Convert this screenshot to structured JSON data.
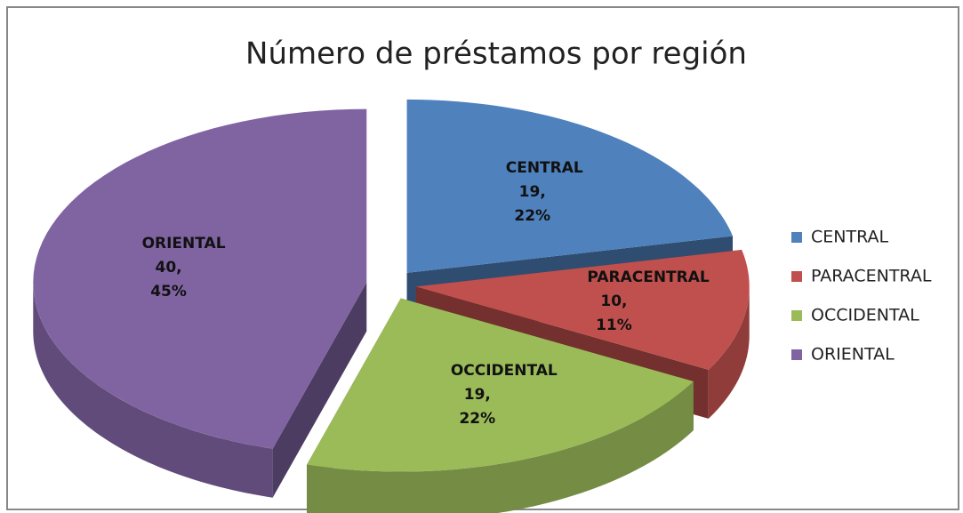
{
  "chart_data": {
    "type": "pie3d",
    "title": "Número de préstamos por región",
    "categories": [
      "CENTRAL",
      "PARACENTRAL",
      "OCCIDENTAL",
      "ORIENTAL"
    ],
    "values": [
      19,
      10,
      19,
      40
    ],
    "value_labels": [
      "19, 22%",
      "10, 11%",
      "19, 22%",
      "40, 45%"
    ],
    "colors": [
      "#4f81bd",
      "#c0504d",
      "#9bbb59",
      "#8064a2"
    ],
    "legend": "right"
  }
}
